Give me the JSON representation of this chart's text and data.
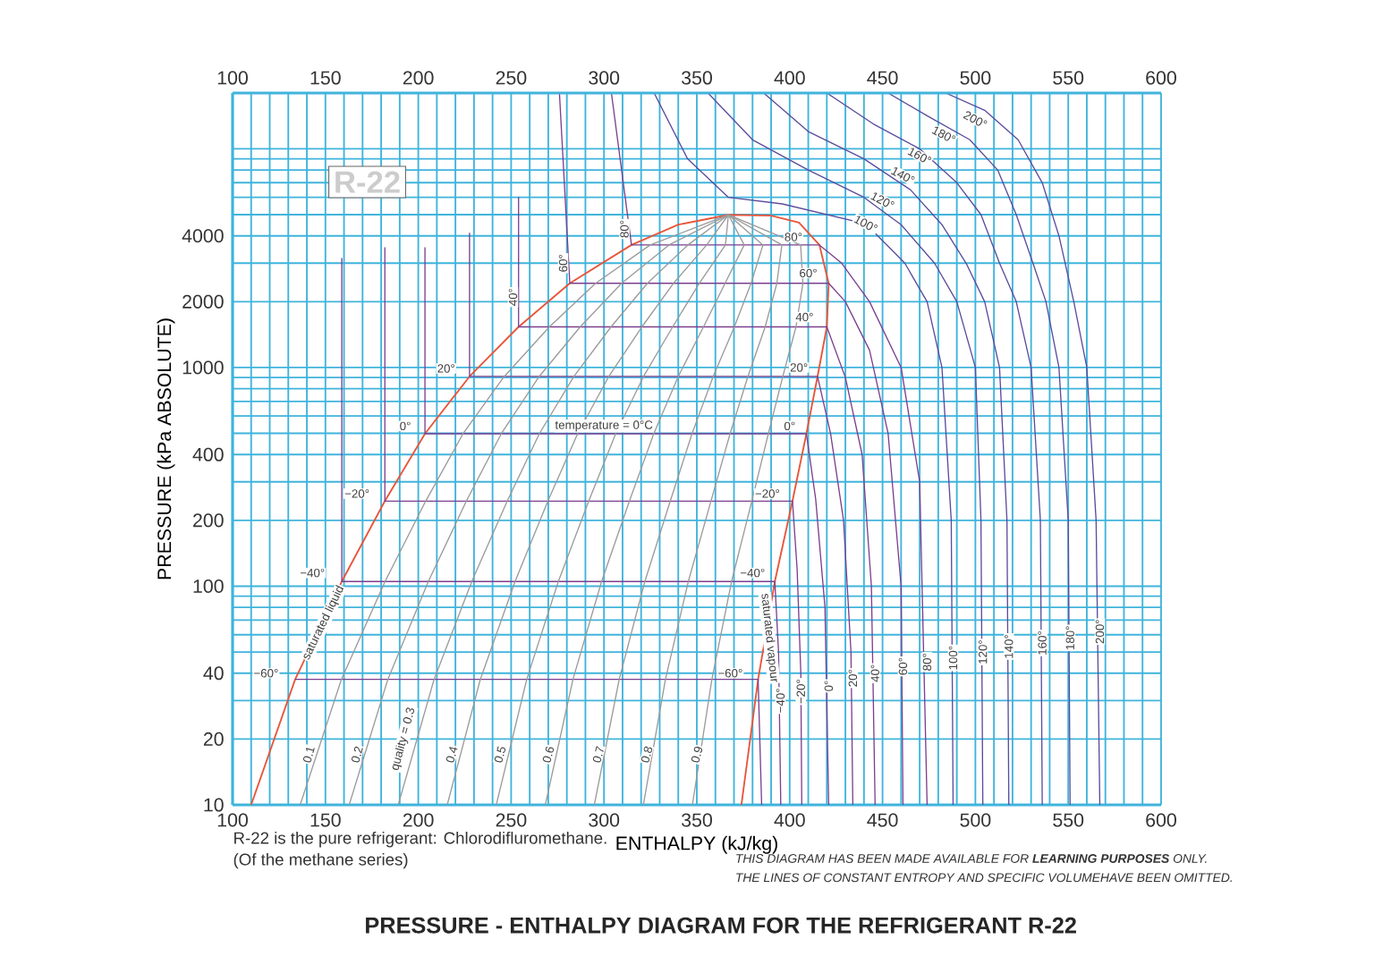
{
  "chart_data": {
    "type": "line",
    "title": "PRESSURE - ENTHALPY DIAGRAM FOR THE REFRIGERANT R-22",
    "xlabel": "ENTHALPY (kJ/kg)",
    "ylabel": "PRESSURE (kPa ABSOLUTE)",
    "xlim": [
      100,
      600
    ],
    "xticks": [
      100,
      {
        "value": 110,
        "label": null
      },
      {
        "value": 120,
        "label": null
      },
      {
        "value": 130,
        "label": null
      },
      {
        "value": 140,
        "label": null
      },
      150,
      {
        "value": 160,
        "label": null
      },
      {
        "value": 170,
        "label": null
      },
      {
        "value": 180,
        "label": null
      },
      {
        "value": 190,
        "label": null
      },
      200,
      {
        "value": 210,
        "label": null
      },
      {
        "value": 220,
        "label": null
      },
      {
        "value": 230,
        "label": null
      },
      {
        "value": 240,
        "label": null
      },
      250,
      {
        "value": 260,
        "label": null
      },
      {
        "value": 270,
        "label": null
      },
      {
        "value": 280,
        "label": null
      },
      {
        "value": 290,
        "label": null
      },
      300,
      {
        "value": 310,
        "label": null
      },
      {
        "value": 320,
        "label": null
      },
      {
        "value": 330,
        "label": null
      },
      {
        "value": 340,
        "label": null
      },
      350,
      {
        "value": 360,
        "label": null
      },
      {
        "value": 370,
        "label": null
      },
      {
        "value": 380,
        "label": null
      },
      {
        "value": 390,
        "label": null
      },
      400,
      {
        "value": 410,
        "label": null
      },
      {
        "value": 420,
        "label": null
      },
      {
        "value": 430,
        "label": null
      },
      {
        "value": 440,
        "label": null
      },
      450,
      {
        "value": 460,
        "label": null
      },
      {
        "value": 470,
        "label": null
      },
      {
        "value": 480,
        "label": null
      },
      {
        "value": 490,
        "label": null
      },
      500,
      {
        "value": 510,
        "label": null
      },
      {
        "value": 520,
        "label": null
      },
      {
        "value": 530,
        "label": null
      },
      {
        "value": 540,
        "label": null
      },
      550,
      {
        "value": 560,
        "label": null
      },
      {
        "value": 570,
        "label": null
      },
      {
        "value": 580,
        "label": null
      },
      {
        "value": 590,
        "label": null
      },
      600
    ],
    "x2lim": [
      100,
      600
    ],
    "x2ticks": [
      100,
      150,
      200,
      250,
      300,
      350,
      400,
      450,
      500,
      550,
      600
    ],
    "ylim": [
      10,
      18000
    ],
    "yticks": [
      10,
      20,
      {
        "value": 30,
        "label": null
      },
      40,
      {
        "value": 50,
        "label": null
      },
      {
        "value": 60,
        "label": null
      },
      {
        "value": 70,
        "label": null
      },
      {
        "value": 80,
        "label": null
      },
      {
        "value": 90,
        "label": null
      },
      100,
      200,
      {
        "value": 300,
        "label": null
      },
      400,
      {
        "value": 500,
        "label": null
      },
      {
        "value": 600,
        "label": null
      },
      {
        "value": 700,
        "label": null
      },
      {
        "value": 800,
        "label": null
      },
      {
        "value": 900,
        "label": null
      },
      1000,
      2000,
      {
        "value": 3000,
        "label": null
      },
      4000,
      {
        "value": 5000,
        "label": null
      },
      {
        "value": 6000,
        "label": null
      },
      {
        "value": 7000,
        "label": null
      },
      {
        "value": 8000,
        "label": null
      },
      {
        "value": 9000,
        "label": null
      },
      {
        "value": 10000,
        "label": null
      }
    ],
    "log": "y",
    "grid": true,
    "marker": "none",
    "line_style": "solid",
    "series": [
      {
        "color": "#e8553a",
        "x": [
          110,
          133.7,
          158.8,
          182,
          203.6,
          227.6,
          254,
          281.6,
          314.8,
          340,
          367,
          390,
          405,
          416,
          421,
          420,
          415,
          409,
          401.5,
          392,
          383,
          374
        ],
        "values": [
          10,
          37.5,
          105,
          245,
          498,
          910,
          1534,
          2427,
          3635,
          4500,
          4990,
          4950,
          4600,
          3635,
          2427,
          1534,
          910,
          498,
          245,
          105,
          37.5,
          10
        ]
      },
      {
        "color": "#7b3f8f",
        "x": [
          133.7,
          383,
          384.9
        ],
        "values": [
          37.5,
          37.5,
          10
        ]
      },
      {
        "color": "#7b3f8f",
        "x": [
          158.8,
          158.8,
          392,
          394,
          395.2
        ],
        "values": [
          3170,
          105,
          105,
          50,
          10
        ]
      },
      {
        "color": "#7b3f8f",
        "x": [
          182,
          182,
          401.5,
          404,
          406,
          406.5
        ],
        "values": [
          3550,
          245,
          245,
          120,
          40,
          10
        ]
      },
      {
        "color": "#7b3f8f",
        "x": [
          203.6,
          203.6,
          409,
          414,
          419,
          421
        ],
        "values": [
          3550,
          498,
          498,
          250,
          80,
          10
        ]
      },
      {
        "color": "#7b3f8f",
        "x": [
          227.6,
          227.6,
          415,
          422,
          429,
          433,
          434
        ],
        "values": [
          4130,
          910,
          910,
          500,
          200,
          50,
          10
        ]
      },
      {
        "color": "#7b3f8f",
        "x": [
          254,
          254,
          420,
          430,
          439,
          444,
          446
        ],
        "values": [
          6030,
          1534,
          1534,
          900,
          400,
          100,
          10
        ]
      },
      {
        "color": "#7b3f8f",
        "x": [
          276,
          281.6,
          421,
          430,
          443,
          453,
          460,
          461
        ],
        "values": [
          18000,
          2427,
          2427,
          2000,
          1200,
          500,
          100,
          10
        ]
      },
      {
        "color": "#7b3f8f",
        "x": [
          304,
          314.8,
          416,
          428,
          443,
          460,
          470,
          474
        ],
        "values": [
          18000,
          3635,
          3635,
          3000,
          2000,
          1000,
          300,
          10
        ]
      },
      {
        "color": "#5b4b9c",
        "x": [
          327,
          345,
          367,
          396,
          441,
          462,
          474,
          482,
          487,
          488
        ],
        "values": [
          18000,
          9000,
          6000,
          5600,
          4540,
          3000,
          2000,
          1000,
          200,
          10
        ]
      },
      {
        "color": "#5b4b9c",
        "x": [
          356,
          380,
          410,
          440,
          460,
          478,
          490,
          500,
          503,
          504
        ],
        "values": [
          18000,
          11000,
          8000,
          6000,
          4500,
          3000,
          2000,
          1000,
          200,
          10
        ]
      },
      {
        "color": "#5b4b9c",
        "x": [
          386,
          410,
          440,
          465,
          482,
          495,
          505,
          513,
          517,
          518
        ],
        "values": [
          18000,
          12000,
          9000,
          6500,
          4500,
          3000,
          2000,
          1000,
          200,
          10
        ]
      },
      {
        "color": "#5b4b9c",
        "x": [
          420,
          445,
          470,
          490,
          503,
          513,
          522,
          530,
          535,
          536
        ],
        "values": [
          18000,
          13000,
          10000,
          7000,
          5000,
          3000,
          2000,
          1000,
          200,
          10
        ]
      },
      {
        "color": "#5b4b9c",
        "x": [
          453,
          475,
          497,
          512,
          522,
          531,
          538,
          545,
          550,
          551
        ],
        "values": [
          18000,
          14000,
          11000,
          8000,
          5000,
          3000,
          2000,
          1000,
          200,
          10
        ]
      },
      {
        "color": "#5b4b9c",
        "x": [
          484,
          505,
          523,
          536,
          545,
          553,
          560,
          565,
          567
        ],
        "values": [
          18000,
          15000,
          11000,
          7000,
          4000,
          2000,
          1000,
          200,
          10
        ]
      },
      {
        "color": "#9a9a9a",
        "x": [
          136.4,
          158.6,
          182.1,
          204.0,
          224.1,
          246.3,
          270.6,
          295.5,
          324.9,
          367
        ],
        "values": [
          10,
          37.5,
          105,
          245,
          498,
          910,
          1534,
          2427,
          3635,
          4990
        ]
      },
      {
        "color": "#9a9a9a",
        "x": [
          162.8,
          183.6,
          205.4,
          225.9,
          244.7,
          265.1,
          287.2,
          309.5,
          335.0,
          367
        ],
        "values": [
          10,
          37.5,
          105,
          245,
          498,
          910,
          1534,
          2427,
          3635,
          4990
        ]
      },
      {
        "color": "#9a9a9a",
        "x": [
          189.2,
          208.5,
          228.8,
          247.9,
          265.2,
          283.8,
          303.8,
          323.4,
          345.2,
          367
        ],
        "values": [
          10,
          37.5,
          105,
          245,
          498,
          910,
          1534,
          2427,
          3635,
          4990
        ]
      },
      {
        "color": "#9a9a9a",
        "x": [
          215.6,
          233.4,
          252.1,
          269.8,
          285.8,
          302.6,
          320.4,
          337.4,
          355.3,
          367
        ],
        "values": [
          10,
          37.5,
          105,
          245,
          498,
          910,
          1534,
          2427,
          3635,
          4990
        ]
      },
      {
        "color": "#9a9a9a",
        "x": [
          242.0,
          258.4,
          275.4,
          291.8,
          306.3,
          321.3,
          337.0,
          351.3,
          365.4,
          367
        ],
        "values": [
          10,
          37.5,
          105,
          245,
          498,
          910,
          1534,
          2427,
          3635,
          4990
        ]
      },
      {
        "color": "#9a9a9a",
        "x": [
          268.4,
          283.3,
          298.7,
          313.7,
          326.8,
          340.0,
          353.6,
          365.2,
          375.5,
          367
        ],
        "values": [
          10,
          37.5,
          105,
          245,
          498,
          910,
          1534,
          2427,
          3635,
          4990
        ]
      },
      {
        "color": "#9a9a9a",
        "x": [
          294.8,
          308.2,
          322.0,
          335.7,
          347.4,
          358.8,
          370.2,
          379.2,
          385.6,
          367
        ],
        "values": [
          10,
          37.5,
          105,
          245,
          498,
          910,
          1534,
          2427,
          3635,
          4990
        ]
      },
      {
        "color": "#9a9a9a",
        "x": [
          321.2,
          333.1,
          345.4,
          357.6,
          367.9,
          377.5,
          386.8,
          393.1,
          395.8,
          367
        ],
        "values": [
          10,
          37.5,
          105,
          245,
          498,
          910,
          1534,
          2427,
          3635,
          4990
        ]
      },
      {
        "color": "#9a9a9a",
        "x": [
          347.6,
          358.1,
          368.7,
          379.6,
          388.5,
          396.3,
          403.4,
          407.1,
          405.9,
          367
        ],
        "values": [
          10,
          37.5,
          105,
          245,
          498,
          910,
          1534,
          2427,
          3635,
          4990
        ]
      }
    ],
    "annotations": [
      "R-22",
      {
        "text": "−60°",
        "x": 118,
        "y": 40
      },
      {
        "text": "−40°",
        "x": 143,
        "y": 115
      },
      {
        "text": "−20°",
        "x": 167,
        "y": 265
      },
      {
        "text": "0°",
        "x": 193,
        "y": 540
      },
      {
        "text": "20°",
        "x": 215,
        "y": 990
      },
      {
        "text": "40°",
        "x": 251,
        "y": 2100
      },
      {
        "text": "60°",
        "x": 278,
        "y": 3000
      },
      {
        "text": "80°",
        "x": 311,
        "y": 4300
      },
      {
        "text": "−60°",
        "x": 368,
        "y": 40
      },
      {
        "text": "−40°",
        "x": 380,
        "y": 115
      },
      {
        "text": "−20°",
        "x": 388,
        "y": 265
      },
      {
        "text": "0°",
        "x": 400,
        "y": 540
      },
      {
        "text": "20°",
        "x": 405,
        "y": 1000
      },
      {
        "text": "40°",
        "x": 408,
        "y": 1700
      },
      {
        "text": "60°",
        "x": 410,
        "y": 2700
      },
      {
        "text": "80°",
        "x": 402,
        "y": 3950
      },
      {
        "text": "temperature = 0°C",
        "x": 300,
        "y": 540
      },
      {
        "text": "saturated liquid",
        "x": 149,
        "y": 68
      },
      {
        "text": "saturated vapour",
        "x": 389,
        "y": 58
      },
      {
        "text": "−40°",
        "x": 395,
        "y": 30
      },
      {
        "text": "−20°",
        "x": 406,
        "y": 33
      },
      {
        "text": "0°",
        "x": 421,
        "y": 35
      },
      {
        "text": "20°",
        "x": 434,
        "y": 38
      },
      {
        "text": "40°",
        "x": 446,
        "y": 40
      },
      {
        "text": "60°",
        "x": 461,
        "y": 43
      },
      {
        "text": "80°",
        "x": 474,
        "y": 45
      },
      {
        "text": "100°",
        "x": 488,
        "y": 47
      },
      {
        "text": "120°",
        "x": 504,
        "y": 50
      },
      {
        "text": "140°",
        "x": 518,
        "y": 53
      },
      {
        "text": "160°",
        "x": 536,
        "y": 55
      },
      {
        "text": "180°",
        "x": 551,
        "y": 58
      },
      {
        "text": "200°",
        "x": 567,
        "y": 62
      },
      {
        "text": "100°",
        "x": 441,
        "y": 4540
      },
      {
        "text": "120°",
        "x": 450,
        "y": 5800
      },
      {
        "text": "140°",
        "x": 461,
        "y": 7560
      },
      {
        "text": "160°",
        "x": 470,
        "y": 9270
      },
      {
        "text": "180°",
        "x": 483,
        "y": 11600
      },
      {
        "text": "200°",
        "x": 500,
        "y": 13600
      },
      {
        "text": "0.1",
        "x": 141,
        "y": 17
      },
      {
        "text": "0.2",
        "x": 167,
        "y": 17
      },
      {
        "text": "quality = 0.3",
        "x": 192,
        "y": 20
      },
      {
        "text": "0.4",
        "x": 218,
        "y": 17
      },
      {
        "text": "0.5",
        "x": 244,
        "y": 17
      },
      {
        "text": "0.6",
        "x": 270,
        "y": 17
      },
      {
        "text": "0.7",
        "x": 297,
        "y": 17
      },
      {
        "text": "0.8",
        "x": 323,
        "y": 17
      },
      {
        "text": "0.9",
        "x": 350,
        "y": 17
      },
      "R-22 is the pure refrigerant: Chlorodifluromethane.",
      "(Of the methane series)",
      "THIS DIAGRAM HAS BEEN MADE AVAILABLE FOR **LEARNING PURPOSES** ONLY.",
      "THE LINES OF CONSTANT ENTROPY AND SPECIFIC VOLUMEHAVE BEEN OMITTED."
    ]
  }
}
